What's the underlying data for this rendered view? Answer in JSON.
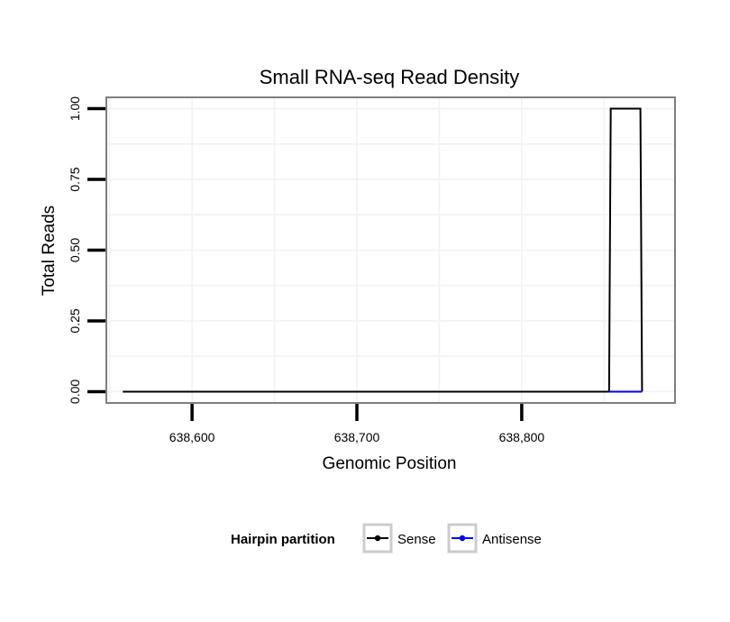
{
  "chart_data": {
    "type": "line",
    "title": "Small RNA-seq Read Density",
    "xlabel": "Genomic Position",
    "ylabel": "Total Reads",
    "xlim": [
      638548,
      638893
    ],
    "ylim": [
      -0.04,
      1.04
    ],
    "x_ticks": [
      638600,
      638700,
      638800
    ],
    "x_tick_labels": [
      "638,600",
      "638,700",
      "638,800"
    ],
    "y_ticks": [
      0,
      0.25,
      0.5,
      0.75,
      1.0
    ],
    "y_tick_labels": [
      "0.00",
      "0.25",
      "0.50",
      "0.75",
      "1.00"
    ],
    "grid": true,
    "legend_position": "bottom",
    "legend_title": "Hairpin partition",
    "series": [
      {
        "name": "Sense",
        "color": "#000000",
        "points": [
          [
            638558,
            0
          ],
          [
            638853,
            0
          ],
          [
            638854,
            1
          ],
          [
            638872,
            1
          ],
          [
            638873,
            0
          ]
        ]
      },
      {
        "name": "Antisense",
        "color": "#0000ff",
        "points": [
          [
            638853,
            0
          ],
          [
            638873,
            0
          ]
        ]
      }
    ]
  }
}
